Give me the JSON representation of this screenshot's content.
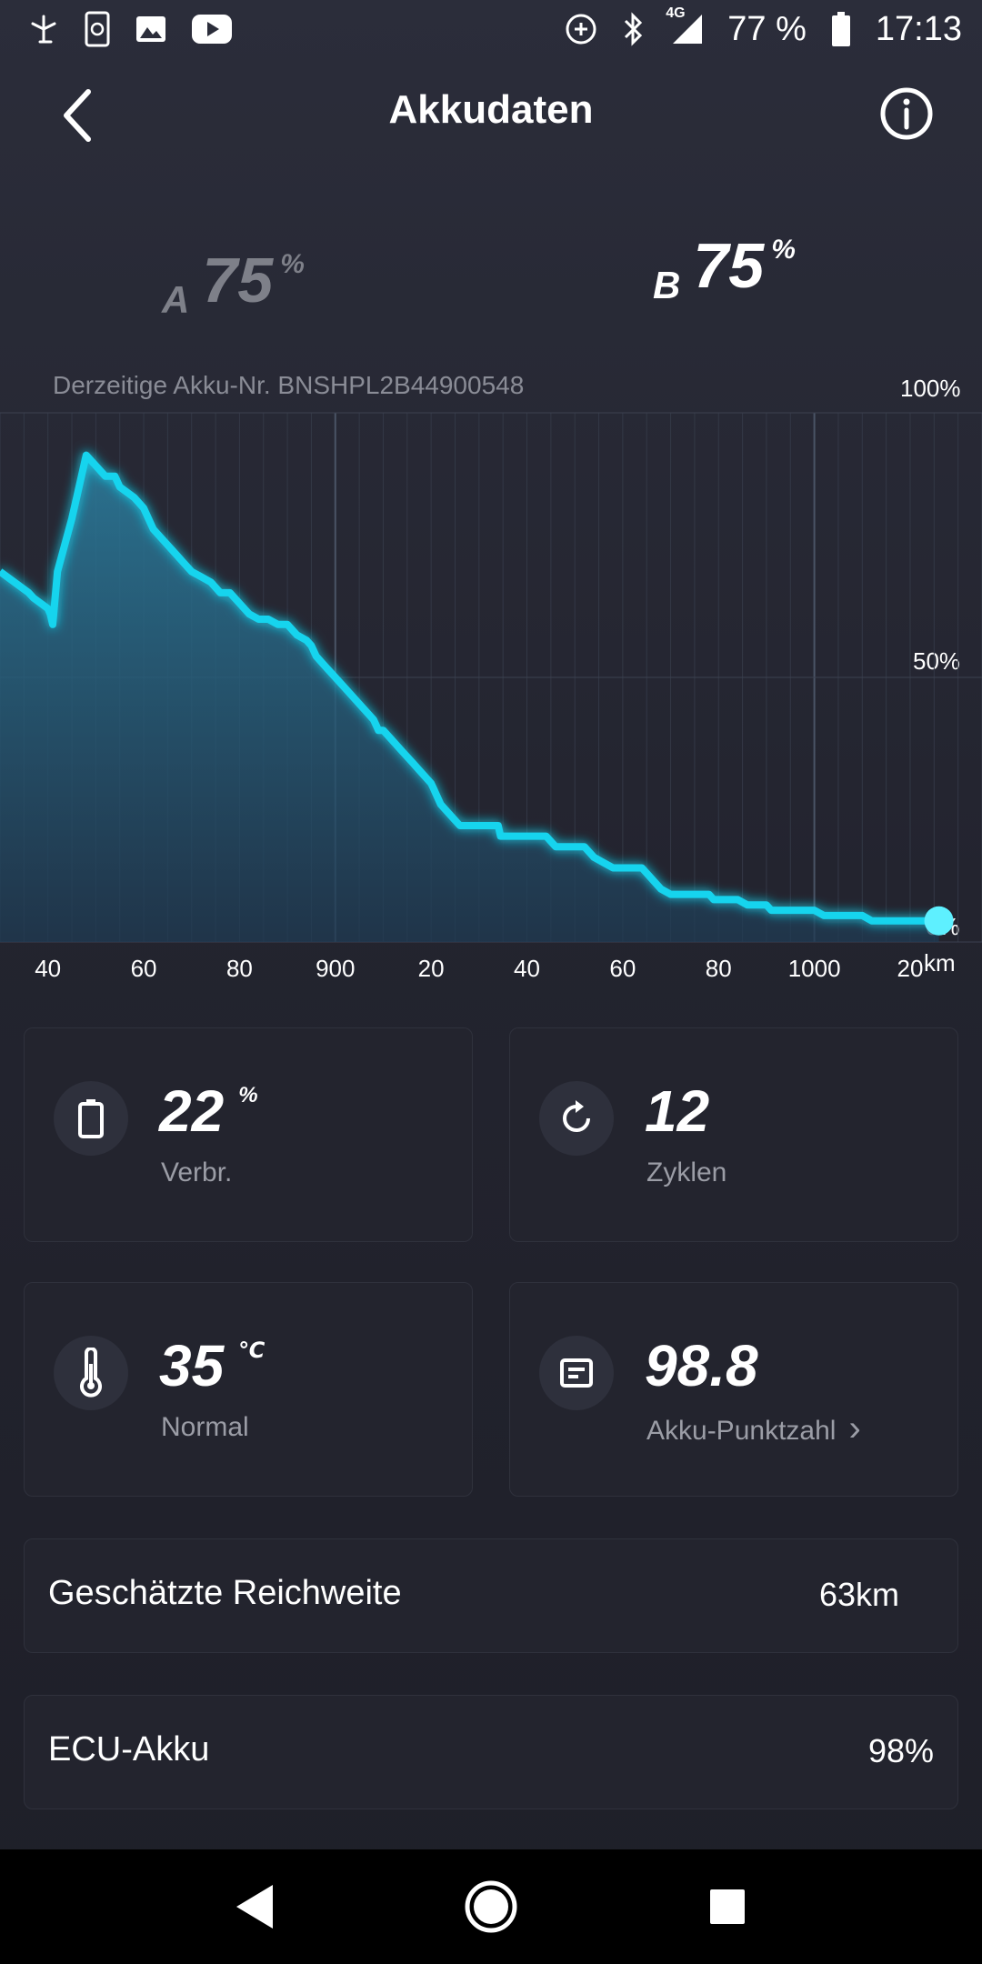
{
  "status_bar": {
    "icons_left": [
      "fan-icon",
      "phone-clean-icon",
      "image-icon",
      "youtube-icon"
    ],
    "icons_right": [
      "data-saver-icon",
      "bluetooth-icon",
      "signal-4g-icon",
      "battery-icon"
    ],
    "network": "4G",
    "battery": "77 %",
    "time": "17:13"
  },
  "header": {
    "title": "Akkudaten",
    "back_icon": "chevron-left-icon",
    "info_icon": "info-icon"
  },
  "batteries": {
    "a": {
      "letter": "A",
      "value": "75",
      "unit": "%"
    },
    "b": {
      "letter": "B",
      "value": "75",
      "unit": "%"
    }
  },
  "serial_text": "Derzeitige Akku-Nr. BNSHPL2B44900548",
  "chart_data": {
    "type": "area",
    "y_ticks": [
      "100%",
      "50%",
      "0%"
    ],
    "x_ticks": [
      "40",
      "60",
      "80",
      "900",
      "20",
      "40",
      "60",
      "80",
      "1000",
      "20"
    ],
    "x_unit": "km",
    "ylim": [
      0,
      100
    ],
    "xlim": [
      830,
      1035
    ],
    "grid": true,
    "colors": {
      "line": "#19d4ee",
      "fill": "#1f6f8c"
    },
    "series": [
      {
        "x": [
          830,
          836,
          837,
          840,
          840.5,
          841,
          842,
          845,
          846,
          848,
          849,
          850,
          852,
          854,
          855,
          858,
          860,
          862,
          866,
          867,
          868,
          870,
          872,
          874,
          876,
          878,
          880,
          882,
          884,
          886,
          888,
          890,
          892,
          894,
          895,
          896,
          898,
          900,
          902,
          904,
          906,
          908,
          908.5,
          909,
          910,
          912,
          914,
          916,
          918,
          920,
          920.5,
          921,
          922,
          924,
          926,
          928,
          930,
          932,
          934,
          934.5,
          935,
          936,
          938,
          940,
          941,
          942,
          944,
          946,
          948,
          950,
          952,
          954,
          956,
          958,
          960,
          962,
          964,
          966,
          968,
          970,
          972,
          974,
          976,
          978,
          979,
          980,
          982,
          984,
          986,
          988,
          990,
          991,
          992,
          994,
          996,
          998,
          1000,
          1002,
          1004,
          1006,
          1008,
          1010,
          1012,
          1014,
          1016,
          1018,
          1020,
          1022,
          1024,
          1026
        ],
        "y": [
          70,
          66,
          65,
          63,
          62,
          60,
          70,
          80,
          84,
          92,
          91,
          90,
          88,
          88,
          86,
          84,
          82,
          78,
          74,
          73,
          72,
          70,
          69,
          68,
          66,
          66,
          64,
          62,
          61,
          61,
          60,
          60,
          58,
          57,
          56,
          54,
          52,
          50,
          48,
          46,
          44,
          42,
          41,
          40,
          40,
          38,
          36,
          34,
          32,
          30,
          29,
          28,
          26,
          24,
          22,
          22,
          22,
          22,
          22,
          20,
          20,
          20,
          20,
          20,
          20,
          20,
          20,
          18,
          18,
          18,
          18,
          16,
          15,
          14,
          14,
          14,
          14,
          12,
          10,
          9,
          9,
          9,
          9,
          9,
          8,
          8,
          8,
          8,
          7,
          7,
          7,
          6,
          6,
          6,
          6,
          6,
          6,
          5,
          5,
          5,
          5,
          5,
          4,
          4,
          4,
          4,
          4,
          4,
          4,
          4
        ]
      }
    ]
  },
  "stats": [
    {
      "icon": "battery-icon",
      "value": "22",
      "unit": "%",
      "label": "Verbr.",
      "chevron": ""
    },
    {
      "icon": "refresh-icon",
      "value": "12",
      "unit": "",
      "label": "Zyklen",
      "chevron": ""
    },
    {
      "icon": "thermometer-icon",
      "value": "35",
      "unit": "℃",
      "label": "Normal",
      "chevron": ""
    },
    {
      "icon": "score-icon",
      "value": "98.8",
      "unit": "",
      "label": "Akku-Punktzahl",
      "chevron": "›"
    }
  ],
  "rows": [
    {
      "label": "Geschätzte Reichweite",
      "value": "63km"
    },
    {
      "label": "ECU-Akku",
      "value": "98%"
    }
  ],
  "nav": {
    "back_icon": "nav-back-icon",
    "home_icon": "nav-home-icon",
    "recents_icon": "nav-recents-icon"
  }
}
